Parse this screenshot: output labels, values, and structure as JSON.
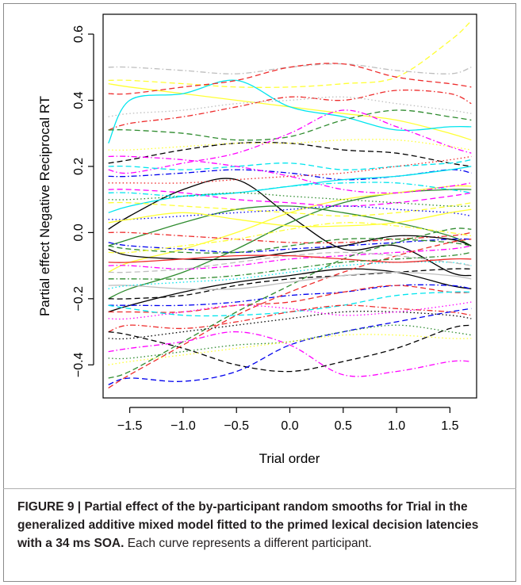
{
  "chart_data": {
    "type": "line",
    "xlabel": "Trial order",
    "ylabel": "Partial effect Negative Reciprocal RT",
    "xlim": [
      -1.75,
      1.75
    ],
    "ylim": [
      -0.5,
      0.66
    ],
    "xticks": [
      "−1.5",
      "−1.0",
      "−0.5",
      "0.0",
      "0.5",
      "1.0",
      "1.5"
    ],
    "xtick_values": [
      -1.5,
      -1.0,
      -0.5,
      0.0,
      0.5,
      1.0,
      1.5
    ],
    "yticks": [
      "−0.4",
      "−0.2",
      "0.0",
      "0.2",
      "0.4",
      "0.6"
    ],
    "ytick_values": [
      -0.4,
      -0.2,
      0.0,
      0.2,
      0.4,
      0.6
    ],
    "grid": false,
    "legend": "none",
    "x": [
      -1.7,
      -1.5,
      -1.0,
      -0.5,
      0.0,
      0.5,
      1.0,
      1.5,
      1.7
    ],
    "series": [
      {
        "color": "#ffff33",
        "style": "dashed",
        "values": [
          0.46,
          0.46,
          0.45,
          0.44,
          0.44,
          0.45,
          0.47,
          0.58,
          0.64
        ]
      },
      {
        "color": "#ffff33",
        "style": "solid",
        "values": [
          0.45,
          0.44,
          0.42,
          0.4,
          0.38,
          0.36,
          0.34,
          0.3,
          0.28
        ]
      },
      {
        "color": "#bebebe",
        "style": "dashdot",
        "values": [
          0.5,
          0.5,
          0.49,
          0.48,
          0.5,
          0.51,
          0.49,
          0.48,
          0.5
        ]
      },
      {
        "color": "#00e5ee",
        "style": "solid",
        "values": [
          0.27,
          0.4,
          0.42,
          0.46,
          0.38,
          0.35,
          0.31,
          0.32,
          0.32
        ]
      },
      {
        "color": "#ee2c2c",
        "style": "dashed",
        "values": [
          0.42,
          0.42,
          0.44,
          0.46,
          0.5,
          0.51,
          0.47,
          0.45,
          0.44
        ]
      },
      {
        "color": "#ee2c2c",
        "style": "dashdot",
        "values": [
          0.31,
          0.33,
          0.35,
          0.38,
          0.41,
          0.4,
          0.43,
          0.42,
          0.39
        ]
      },
      {
        "color": "#bebebe",
        "style": "dotted",
        "values": [
          0.35,
          0.36,
          0.37,
          0.39,
          0.4,
          0.41,
          0.39,
          0.37,
          0.36
        ]
      },
      {
        "color": "#2e8b2e",
        "style": "dashed",
        "values": [
          0.31,
          0.31,
          0.3,
          0.28,
          0.29,
          0.34,
          0.37,
          0.35,
          0.34
        ]
      },
      {
        "color": "#000000",
        "style": "dashed",
        "values": [
          0.21,
          0.22,
          0.25,
          0.27,
          0.27,
          0.25,
          0.24,
          0.21,
          0.2
        ]
      },
      {
        "color": "#ff00ff",
        "style": "dashdot",
        "values": [
          0.19,
          0.18,
          0.21,
          0.24,
          0.3,
          0.37,
          0.32,
          0.26,
          0.24
        ]
      },
      {
        "color": "#ffff33",
        "style": "dotted",
        "values": [
          0.25,
          0.25,
          0.26,
          0.27,
          0.27,
          0.28,
          0.28,
          0.26,
          0.25
        ]
      },
      {
        "color": "#00e5ee",
        "style": "dashed",
        "values": [
          0.2,
          0.2,
          0.19,
          0.2,
          0.21,
          0.19,
          0.2,
          0.21,
          0.22
        ]
      },
      {
        "color": "#0000ee",
        "style": "dashdot",
        "values": [
          0.17,
          0.17,
          0.18,
          0.19,
          0.18,
          0.16,
          0.17,
          0.19,
          0.18
        ]
      },
      {
        "color": "#000000",
        "style": "solid",
        "values": [
          0.01,
          0.05,
          0.13,
          0.16,
          0.05,
          -0.05,
          -0.04,
          -0.12,
          -0.13
        ]
      },
      {
        "color": "#00e5ee",
        "style": "solid",
        "values": [
          0.06,
          0.08,
          0.11,
          0.12,
          0.14,
          0.16,
          0.17,
          0.19,
          0.2
        ]
      },
      {
        "color": "#2e8b2e",
        "style": "solid",
        "values": [
          -0.04,
          -0.02,
          0.03,
          0.07,
          0.08,
          0.06,
          0.03,
          -0.01,
          -0.04
        ]
      },
      {
        "color": "#2e8b2e",
        "style": "solid",
        "values": [
          -0.2,
          -0.17,
          -0.12,
          -0.05,
          0.03,
          0.09,
          0.12,
          0.13,
          0.13
        ]
      },
      {
        "color": "#ffff33",
        "style": "solid",
        "values": [
          -0.12,
          -0.09,
          -0.05,
          0.0,
          0.06,
          0.1,
          0.12,
          0.14,
          0.14
        ]
      },
      {
        "color": "#ee2c2c",
        "style": "dashdot",
        "values": [
          0.0,
          0.0,
          -0.01,
          -0.02,
          -0.03,
          -0.03,
          -0.02,
          -0.01,
          0.0
        ]
      },
      {
        "color": "#0000ee",
        "style": "dashdot",
        "values": [
          -0.03,
          -0.04,
          -0.05,
          -0.06,
          -0.05,
          -0.04,
          -0.03,
          -0.02,
          -0.02
        ]
      },
      {
        "color": "#000000",
        "style": "solid",
        "values": [
          -0.05,
          -0.07,
          -0.08,
          -0.08,
          -0.06,
          -0.04,
          -0.01,
          -0.02,
          -0.04
        ]
      },
      {
        "color": "#2e8b2e",
        "style": "dashed",
        "values": [
          -0.04,
          -0.05,
          -0.06,
          -0.06,
          -0.04,
          -0.02,
          -0.02,
          -0.03,
          -0.04
        ]
      },
      {
        "color": "#ff00ff",
        "style": "dashdot",
        "values": [
          -0.1,
          -0.1,
          -0.11,
          -0.1,
          -0.08,
          -0.07,
          -0.06,
          -0.05,
          -0.04
        ]
      },
      {
        "color": "#000000",
        "style": "solid",
        "values": [
          -0.24,
          -0.22,
          -0.18,
          -0.15,
          -0.13,
          -0.11,
          -0.12,
          -0.16,
          -0.17
        ]
      },
      {
        "color": "#000000",
        "style": "dashed",
        "values": [
          -0.2,
          -0.2,
          -0.19,
          -0.16,
          -0.14,
          -0.13,
          -0.12,
          -0.11,
          -0.11
        ]
      },
      {
        "color": "#0000ee",
        "style": "dashdot",
        "values": [
          -0.22,
          -0.22,
          -0.22,
          -0.21,
          -0.19,
          -0.18,
          -0.16,
          -0.16,
          -0.17
        ]
      },
      {
        "color": "#ee2c2c",
        "style": "dashed",
        "values": [
          -0.24,
          -0.24,
          -0.24,
          -0.22,
          -0.21,
          -0.18,
          -0.16,
          -0.18,
          -0.18
        ]
      },
      {
        "color": "#00e5ee",
        "style": "dashed",
        "values": [
          -0.22,
          -0.23,
          -0.25,
          -0.25,
          -0.24,
          -0.22,
          -0.19,
          -0.18,
          -0.18
        ]
      },
      {
        "color": "#ee2c2c",
        "style": "dashdot",
        "values": [
          -0.3,
          -0.28,
          -0.29,
          -0.27,
          -0.24,
          -0.22,
          -0.23,
          -0.24,
          -0.25
        ]
      },
      {
        "color": "#000000",
        "style": "dashed",
        "values": [
          -0.3,
          -0.31,
          -0.35,
          -0.4,
          -0.42,
          -0.39,
          -0.35,
          -0.29,
          -0.28
        ]
      },
      {
        "color": "#2e8b2e",
        "style": "dashed",
        "values": [
          -0.44,
          -0.42,
          -0.33,
          -0.24,
          -0.16,
          -0.08,
          -0.03,
          0.01,
          0.01
        ]
      },
      {
        "color": "#ee2c2c",
        "style": "dashed",
        "values": [
          -0.47,
          -0.43,
          -0.34,
          -0.25,
          -0.18,
          -0.12,
          -0.07,
          -0.03,
          -0.02
        ]
      },
      {
        "color": "#0000ee",
        "style": "dashed",
        "values": [
          -0.46,
          -0.44,
          -0.45,
          -0.42,
          -0.34,
          -0.3,
          -0.27,
          -0.24,
          -0.23
        ]
      },
      {
        "color": "#ff00ff",
        "style": "dashdot",
        "values": [
          -0.36,
          -0.35,
          -0.33,
          -0.3,
          -0.34,
          -0.43,
          -0.42,
          -0.39,
          -0.39
        ]
      },
      {
        "color": "#2e8b2e",
        "style": "dotted",
        "values": [
          -0.38,
          -0.38,
          -0.36,
          -0.34,
          -0.33,
          -0.3,
          -0.28,
          -0.3,
          -0.31
        ]
      },
      {
        "color": "#ffff33",
        "style": "dotted",
        "values": [
          -0.4,
          -0.39,
          -0.37,
          -0.35,
          -0.33,
          -0.31,
          -0.31,
          -0.32,
          -0.32
        ]
      },
      {
        "color": "#000000",
        "style": "dotted",
        "values": [
          -0.32,
          -0.32,
          -0.3,
          -0.28,
          -0.26,
          -0.24,
          -0.24,
          -0.25,
          -0.26
        ]
      },
      {
        "color": "#ff00ff",
        "style": "dotted",
        "values": [
          -0.26,
          -0.26,
          -0.24,
          -0.22,
          -0.23,
          -0.25,
          -0.24,
          -0.22,
          -0.21
        ]
      },
      {
        "color": "#bebebe",
        "style": "solid",
        "values": [
          -0.16,
          -0.16,
          -0.17,
          -0.17,
          -0.15,
          -0.13,
          -0.12,
          -0.13,
          -0.14
        ]
      },
      {
        "color": "#00e5ee",
        "style": "dotted",
        "values": [
          -0.17,
          -0.16,
          -0.15,
          -0.14,
          -0.12,
          -0.1,
          -0.09,
          -0.09,
          -0.1
        ]
      },
      {
        "color": "#ff00ff",
        "style": "dashed",
        "values": [
          0.13,
          0.13,
          0.12,
          0.1,
          0.09,
          0.08,
          0.09,
          0.11,
          0.12
        ]
      },
      {
        "color": "#ffff33",
        "style": "dashed",
        "values": [
          0.09,
          0.09,
          0.08,
          0.07,
          0.06,
          0.05,
          0.06,
          0.08,
          0.09
        ]
      },
      {
        "color": "#2e8b2e",
        "style": "dotted",
        "values": [
          0.1,
          0.1,
          0.11,
          0.12,
          0.11,
          0.1,
          0.09,
          0.08,
          0.08
        ]
      },
      {
        "color": "#0000ee",
        "style": "dotted",
        "values": [
          0.04,
          0.04,
          0.05,
          0.06,
          0.07,
          0.08,
          0.07,
          0.06,
          0.05
        ]
      },
      {
        "color": "#ff00ff",
        "style": "dashdot",
        "values": [
          0.23,
          0.23,
          0.22,
          0.2,
          0.17,
          0.13,
          0.12,
          0.14,
          0.15
        ]
      },
      {
        "color": "#ee2c2c",
        "style": "dotted",
        "values": [
          0.15,
          0.15,
          0.15,
          0.16,
          0.17,
          0.18,
          0.2,
          0.22,
          0.23
        ]
      },
      {
        "color": "#00e5ee",
        "style": "dashdot",
        "values": [
          0.12,
          0.12,
          0.11,
          0.12,
          0.14,
          0.15,
          0.15,
          0.13,
          0.12
        ]
      },
      {
        "color": "#ffff33",
        "style": "solid",
        "values": [
          0.03,
          0.04,
          0.06,
          0.04,
          0.02,
          0.02,
          0.03,
          0.06,
          0.07
        ]
      },
      {
        "color": "#bebebe",
        "style": "dashed",
        "values": [
          -0.12,
          -0.12,
          -0.11,
          -0.09,
          -0.07,
          -0.06,
          -0.07,
          -0.09,
          -0.1
        ]
      },
      {
        "color": "#ee2c2c",
        "style": "solid",
        "values": [
          -0.09,
          -0.09,
          -0.08,
          -0.07,
          -0.07,
          -0.08,
          -0.09,
          -0.08,
          -0.08
        ]
      },
      {
        "color": "#2e8b2e",
        "style": "dashdot",
        "values": [
          -0.14,
          -0.14,
          -0.14,
          -0.13,
          -0.11,
          -0.09,
          -0.08,
          -0.07,
          -0.06
        ]
      },
      {
        "color": "#ffff33",
        "style": "dashdot",
        "values": [
          -0.06,
          -0.06,
          -0.04,
          -0.02,
          0.01,
          0.03,
          0.02,
          0.0,
          -0.01
        ]
      }
    ]
  },
  "caption": {
    "bold": "FIGURE 9 | Partial effect of the by-participant random smooths for Trial in the generalized additive mixed model fitted to the primed lexical decision latencies with a 34 ms SOA.",
    "normal": "Each curve represents a different participant."
  }
}
